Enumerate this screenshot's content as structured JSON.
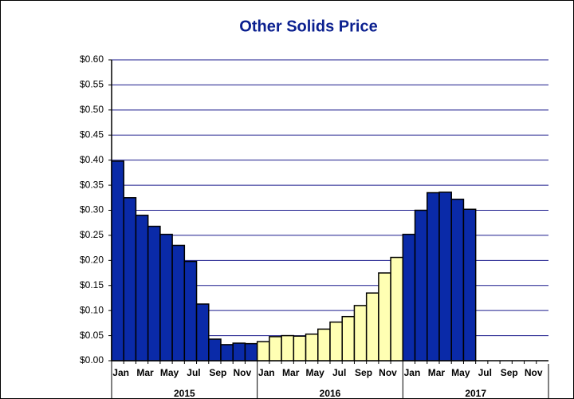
{
  "chart_data": {
    "type": "bar",
    "title": "Other Solids Price",
    "categories": [
      "Jan",
      null,
      "Mar",
      null,
      "May",
      null,
      "Jul",
      null,
      "Sep",
      null,
      "Nov",
      null,
      "Jan",
      null,
      "Mar",
      null,
      "May",
      null,
      "Jul",
      null,
      "Sep",
      null,
      "Nov",
      null,
      "Jan",
      null,
      "Mar",
      null,
      "May",
      null,
      "Jul",
      null,
      "Sep",
      null,
      "Nov",
      null
    ],
    "years": [
      "2015",
      "2016",
      "2017"
    ],
    "values": [
      0.398,
      0.325,
      0.29,
      0.268,
      0.252,
      0.23,
      0.198,
      0.113,
      0.043,
      0.032,
      0.035,
      0.034,
      0.038,
      0.048,
      0.05,
      0.049,
      0.053,
      0.063,
      0.077,
      0.088,
      0.11,
      0.135,
      0.175,
      0.206,
      0.252,
      0.3,
      0.335,
      0.336,
      0.322,
      0.302,
      null,
      null,
      null,
      null,
      null,
      null
    ],
    "colors": [
      "#0a2aa8",
      "#0a2aa8",
      "#0a2aa8",
      "#0a2aa8",
      "#0a2aa8",
      "#0a2aa8",
      "#0a2aa8",
      "#0a2aa8",
      "#0a2aa8",
      "#0a2aa8",
      "#0a2aa8",
      "#0a2aa8",
      "#ffffb3",
      "#ffffb3",
      "#ffffb3",
      "#ffffb3",
      "#ffffb3",
      "#ffffb3",
      "#ffffb3",
      "#ffffb3",
      "#ffffb3",
      "#ffffb3",
      "#ffffb3",
      "#ffffb3",
      "#0a2aa8",
      "#0a2aa8",
      "#0a2aa8",
      "#0a2aa8",
      "#0a2aa8",
      "#0a2aa8",
      "#0a2aa8",
      "#0a2aa8",
      "#0a2aa8",
      "#0a2aa8",
      "#0a2aa8",
      "#0a2aa8"
    ],
    "ylim": [
      0,
      0.6
    ],
    "yticks": [
      {
        "value": 0,
        "label": "$0.00"
      },
      {
        "value": 0.05,
        "label": "$0.05"
      },
      {
        "value": 0.1,
        "label": "$0.10"
      },
      {
        "value": 0.15,
        "label": "$0.15"
      },
      {
        "value": 0.2,
        "label": "$0.20"
      },
      {
        "value": 0.25,
        "label": "$0.25"
      },
      {
        "value": 0.3,
        "label": "$0.30"
      },
      {
        "value": 0.35,
        "label": "$0.35"
      },
      {
        "value": 0.4,
        "label": "$0.40"
      },
      {
        "value": 0.45,
        "label": "$0.45"
      },
      {
        "value": 0.5,
        "label": "$0.50"
      },
      {
        "value": 0.55,
        "label": "$0.55"
      },
      {
        "value": 0.6,
        "label": "$0.60"
      }
    ],
    "grid": true,
    "grid_color": "#1a1a8c"
  }
}
